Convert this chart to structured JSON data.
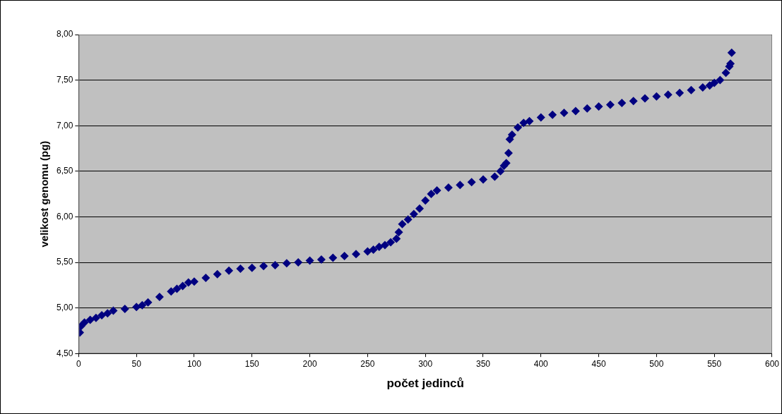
{
  "chart_data": {
    "type": "scatter",
    "xlabel": "počet jedinců",
    "ylabel": "velikost genomu (pg)",
    "marker": "diamond",
    "grid": "y",
    "legend": false,
    "xlim": [
      0,
      600
    ],
    "xticks": [
      0,
      50,
      100,
      150,
      200,
      250,
      300,
      350,
      400,
      450,
      500,
      550,
      600
    ],
    "ylim": [
      4.5,
      8
    ],
    "yticks": [
      {
        "value": 4.5,
        "label": "4,50"
      },
      {
        "value": 5,
        "label": "5,00"
      },
      {
        "value": 5.5,
        "label": "5,50"
      },
      {
        "value": 6,
        "label": "6,00"
      },
      {
        "value": 6.5,
        "label": "6,50"
      },
      {
        "value": 7,
        "label": "7,00"
      },
      {
        "value": 7.5,
        "label": "7,50"
      },
      {
        "value": 8,
        "label": "8,00"
      }
    ],
    "series": [
      {
        "color": "#000080",
        "x": [
          1,
          2,
          5,
          10,
          15,
          20,
          25,
          30,
          40,
          50,
          55,
          60,
          70,
          80,
          85,
          90,
          95,
          100,
          110,
          120,
          130,
          140,
          150,
          160,
          170,
          180,
          190,
          200,
          210,
          220,
          230,
          240,
          250,
          255,
          260,
          265,
          270,
          275,
          277,
          280,
          285,
          290,
          295,
          300,
          305,
          310,
          320,
          330,
          340,
          350,
          360,
          365,
          368,
          370,
          372,
          373,
          375,
          380,
          385,
          390,
          400,
          410,
          420,
          430,
          440,
          450,
          460,
          470,
          480,
          490,
          500,
          510,
          520,
          530,
          540,
          546,
          550,
          555,
          560,
          563,
          564,
          565
        ],
        "values": [
          4.73,
          4.8,
          4.84,
          4.87,
          4.89,
          4.92,
          4.94,
          4.97,
          4.99,
          5.01,
          5.03,
          5.06,
          5.12,
          5.18,
          5.21,
          5.24,
          5.28,
          5.29,
          5.33,
          5.37,
          5.41,
          5.43,
          5.44,
          5.46,
          5.47,
          5.49,
          5.5,
          5.52,
          5.53,
          5.55,
          5.57,
          5.59,
          5.62,
          5.64,
          5.67,
          5.69,
          5.72,
          5.76,
          5.83,
          5.92,
          5.97,
          6.03,
          6.09,
          6.18,
          6.25,
          6.29,
          6.32,
          6.35,
          6.38,
          6.41,
          6.44,
          6.5,
          6.56,
          6.59,
          6.7,
          6.85,
          6.9,
          6.98,
          7.03,
          7.05,
          7.09,
          7.12,
          7.14,
          7.16,
          7.19,
          7.21,
          7.23,
          7.25,
          7.27,
          7.3,
          7.32,
          7.34,
          7.36,
          7.39,
          7.42,
          7.44,
          7.47,
          7.5,
          7.58,
          7.65,
          7.68,
          7.8
        ]
      }
    ]
  }
}
